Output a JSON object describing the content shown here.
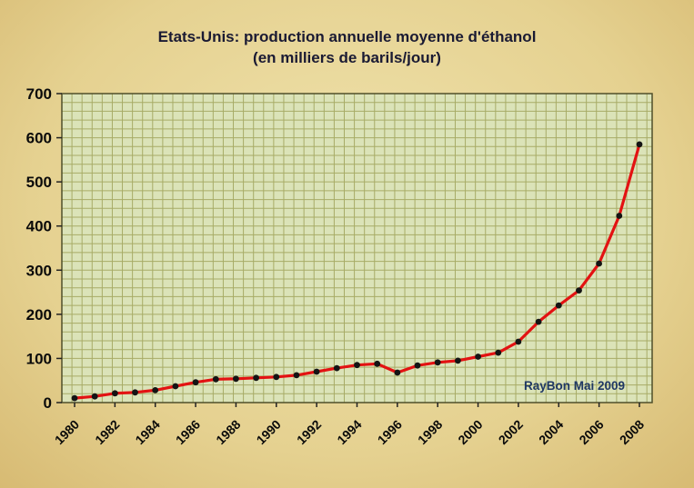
{
  "chart_data": {
    "type": "line",
    "title": "Etats-Unis: production annuelle moyenne d'éthanol",
    "subtitle": "(en milliers de barils/jour)",
    "x": [
      1980,
      1981,
      1982,
      1983,
      1984,
      1985,
      1986,
      1987,
      1988,
      1989,
      1990,
      1991,
      1992,
      1993,
      1994,
      1995,
      1996,
      1997,
      1998,
      1999,
      2000,
      2001,
      2002,
      2003,
      2004,
      2005,
      2006,
      2007,
      2008
    ],
    "values": [
      10,
      14,
      21,
      23,
      28,
      37,
      46,
      53,
      54,
      56,
      58,
      62,
      70,
      78,
      85,
      88,
      68,
      84,
      91,
      95,
      104,
      113,
      138,
      183,
      220,
      254,
      315,
      423,
      585
    ],
    "ylim": [
      0,
      700
    ],
    "yticks": [
      0,
      100,
      200,
      300,
      400,
      500,
      600,
      700
    ],
    "xtick_labels": [
      "1980",
      "1982",
      "1984",
      "1986",
      "1988",
      "1990",
      "1992",
      "1994",
      "1996",
      "1998",
      "2000",
      "2002",
      "2004",
      "2006",
      "2008"
    ],
    "annotation": "RayBon Mai 2009",
    "legend_position": "none",
    "grid": "on",
    "line_color": "#e31212",
    "marker_color": "#141414",
    "plot_bg": "#dbe3b8",
    "grid_color": "#a2a65e",
    "border_color": "#4f4f2a",
    "axis_text_color": "#0a0a0a",
    "annotation_color": "#1f3864",
    "title_color": "#1a1a33"
  }
}
